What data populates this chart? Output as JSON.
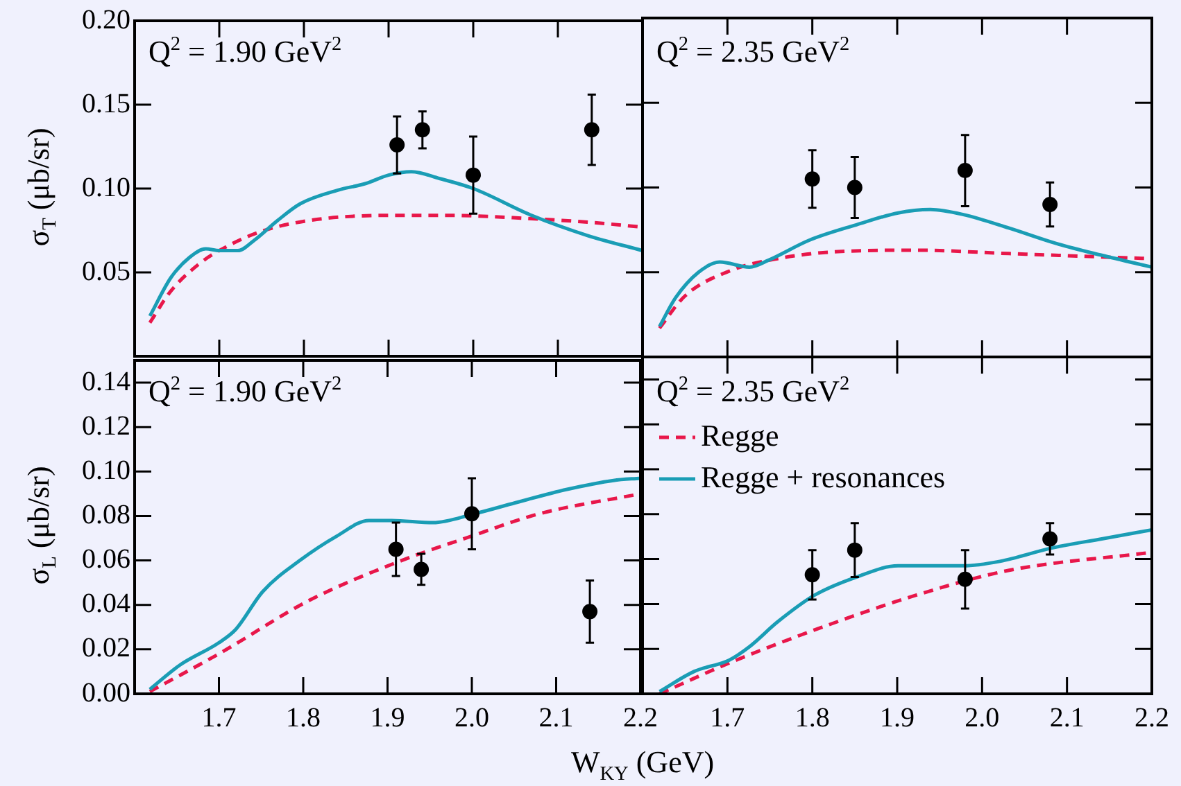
{
  "chart_data": [
    {
      "type": "line",
      "annotations": [
        "Q$^{2}$ = 1.90 GeV$^{2}$"
      ],
      "ylabel": "σ$_{T}$ (μb/sr)",
      "xlim": [
        1.6,
        2.2
      ],
      "xticks": [
        {
          "value": 1.7,
          "label": null
        },
        {
          "value": 1.8,
          "label": null
        },
        {
          "value": 1.9,
          "label": null
        },
        {
          "value": 2,
          "label": null
        },
        {
          "value": 2.1,
          "label": null
        },
        {
          "value": 2.2,
          "label": null
        }
      ],
      "ylim": [
        0,
        0.2
      ],
      "yticks": [
        0.05,
        {
          "value": 0.1,
          "label": "0.10"
        },
        0.15,
        {
          "value": 0.2,
          "label": "0.20"
        }
      ],
      "tick_labels": "y",
      "series": [
        {
          "type": "line",
          "color": "#1a9db5",
          "line_style": "solid",
          "marker": "none",
          "x": [
            1.618,
            1.643,
            1.665,
            1.684,
            1.7,
            1.722,
            1.741,
            1.769,
            1.796,
            1.84,
            1.873,
            1.9,
            1.927,
            1.96,
            2.0,
            2.069,
            2.135,
            2.2
          ],
          "values": [
            0.024,
            0.047,
            0.059,
            0.064,
            0.063,
            0.063,
            0.069,
            0.081,
            0.091,
            0.099,
            0.103,
            0.108,
            0.11,
            0.106,
            0.1,
            0.084,
            0.072,
            0.063
          ]
        },
        {
          "type": "line",
          "color": "#e8174a",
          "line_style": "dashed",
          "marker": "none",
          "x": [
            1.618,
            1.643,
            1.676,
            1.7,
            1.747,
            1.807,
            1.9,
            1.971,
            2.069,
            2.135,
            2.2
          ],
          "values": [
            0.02,
            0.039,
            0.055,
            0.063,
            0.074,
            0.081,
            0.084,
            0.084,
            0.082,
            0.08,
            0.077
          ]
        },
        {
          "type": "scatter",
          "color": "#000000",
          "marker": "circle",
          "x": [
            1.91,
            1.94,
            2.0,
            2.14
          ],
          "values": [
            0.126,
            0.135,
            0.108,
            0.135
          ],
          "errors": [
            0.017,
            0.011,
            0.023,
            0.021
          ]
        }
      ]
    },
    {
      "type": "line",
      "annotations": [
        "Q$^{2}$ = 2.35 GeV$^{2}$"
      ],
      "xlim": [
        1.6,
        2.2
      ],
      "xticks": [
        {
          "value": 1.7,
          "label": null
        },
        {
          "value": 1.8,
          "label": null
        },
        {
          "value": 1.9,
          "label": null
        },
        {
          "value": 2,
          "label": null
        },
        {
          "value": 2.1,
          "label": null
        },
        {
          "value": 2.2,
          "label": null
        }
      ],
      "ylim": [
        0,
        0.2
      ],
      "yticks": [
        {
          "value": 0.05,
          "label": null
        },
        {
          "value": 0.1,
          "label": null
        },
        {
          "value": 0.15,
          "label": null
        },
        {
          "value": 0.2,
          "label": null
        }
      ],
      "tick_labels": false,
      "series": [
        {
          "type": "line",
          "color": "#1a9db5",
          "line_style": "solid",
          "marker": "none",
          "x": [
            1.62,
            1.639,
            1.666,
            1.691,
            1.726,
            1.748,
            1.797,
            1.852,
            1.901,
            1.939,
            1.978,
            2.032,
            2.087,
            2.141,
            2.2
          ],
          "values": [
            0.018,
            0.035,
            0.05,
            0.056,
            0.053,
            0.057,
            0.069,
            0.078,
            0.085,
            0.087,
            0.084,
            0.076,
            0.067,
            0.06,
            0.053
          ]
        },
        {
          "type": "line",
          "color": "#e8174a",
          "line_style": "dashed",
          "marker": "none",
          "x": [
            1.62,
            1.65,
            1.704,
            1.759,
            1.825,
            1.923,
            2.032,
            2.141,
            2.2
          ],
          "values": [
            0.017,
            0.036,
            0.051,
            0.058,
            0.062,
            0.063,
            0.061,
            0.059,
            0.058
          ]
        },
        {
          "type": "scatter",
          "color": "#000000",
          "marker": "circle",
          "x": [
            1.8,
            1.85,
            1.98,
            2.08
          ],
          "values": [
            0.105,
            0.1,
            0.11,
            0.09
          ],
          "errors": [
            0.017,
            0.018,
            0.021,
            0.013
          ]
        }
      ]
    },
    {
      "type": "line",
      "annotations": [
        "Q$^{2}$ = 1.90 GeV$^{2}$"
      ],
      "ylabel": "σ$_{L}$ (μb/sr)",
      "xlabel": "W$_{KY}$ (GeV)",
      "xlim": [
        1.6,
        2.2
      ],
      "xticks": [
        1.7,
        1.8,
        1.9,
        {
          "value": 2,
          "label": "2.0"
        },
        2.1,
        2.2
      ],
      "ylim": [
        0,
        0.15
      ],
      "yticks": [
        {
          "value": 0,
          "label": "0.00"
        },
        0.02,
        0.04,
        0.06,
        0.08,
        {
          "value": 0.1,
          "label": "0.10"
        },
        0.12,
        0.14
      ],
      "series": [
        {
          "type": "line",
          "color": "#1a9db5",
          "line_style": "solid",
          "marker": "none",
          "x": [
            1.618,
            1.654,
            1.7,
            1.72,
            1.752,
            1.796,
            1.84,
            1.878,
            1.905,
            1.954,
            2.003,
            2.052,
            2.113,
            2.168,
            2.2
          ],
          "values": [
            0.002,
            0.013,
            0.023,
            0.029,
            0.046,
            0.06,
            0.071,
            0.078,
            0.078,
            0.077,
            0.081,
            0.086,
            0.092,
            0.096,
            0.097
          ]
        },
        {
          "type": "line",
          "color": "#e8174a",
          "line_style": "dashed",
          "marker": "none",
          "x": [
            1.618,
            1.7,
            1.807,
            1.91,
            2.0,
            2.08,
            2.2
          ],
          "values": [
            0.001,
            0.018,
            0.042,
            0.059,
            0.071,
            0.081,
            0.09
          ]
        },
        {
          "type": "scatter",
          "color": "#000000",
          "marker": "circle",
          "x": [
            1.91,
            1.94,
            2.0,
            2.14
          ],
          "values": [
            0.065,
            0.056,
            0.081,
            0.037
          ],
          "errors": [
            0.012,
            0.007,
            0.016,
            0.014
          ]
        }
      ]
    },
    {
      "type": "line",
      "annotations": [
        "Q$^{2}$ = 2.35 GeV$^{2}$"
      ],
      "legend": "top left",
      "xlim": [
        1.6,
        2.2
      ],
      "xticks": [
        1.7,
        1.8,
        1.9,
        {
          "value": 2,
          "label": "2.0"
        },
        2.1,
        2.2
      ],
      "ylim": [
        0,
        0.15
      ],
      "yticks": [
        {
          "value": 0,
          "label": null
        },
        {
          "value": 0.02,
          "label": null
        },
        {
          "value": 0.04,
          "label": null
        },
        {
          "value": 0.06,
          "label": null
        },
        {
          "value": 0.08,
          "label": null
        },
        {
          "value": 0.1,
          "label": null
        },
        {
          "value": 0.12,
          "label": null
        },
        {
          "value": 0.14,
          "label": null
        }
      ],
      "tick_labels": "x",
      "series": [
        {
          "type": "line",
          "name": "Regge + resonances",
          "color": "#1a9db5",
          "line_style": "solid",
          "marker": "none",
          "x": [
            1.62,
            1.661,
            1.702,
            1.726,
            1.759,
            1.803,
            1.852,
            1.901,
            1.934,
            1.978,
            2.021,
            2.083,
            2.141,
            2.2
          ],
          "values": [
            0.001,
            0.01,
            0.015,
            0.021,
            0.032,
            0.044,
            0.052,
            0.057,
            0.057,
            0.057,
            0.059,
            0.065,
            0.069,
            0.073
          ]
        },
        {
          "type": "line",
          "name": "Regge",
          "color": "#e8174a",
          "line_style": "dashed",
          "marker": "none",
          "x": [
            1.62,
            1.704,
            1.814,
            1.923,
            2.032,
            2.2
          ],
          "values": [
            0.0,
            0.014,
            0.03,
            0.044,
            0.055,
            0.063
          ]
        },
        {
          "type": "scatter",
          "color": "#000000",
          "marker": "circle",
          "x": [
            1.8,
            1.85,
            1.98,
            2.08
          ],
          "values": [
            0.053,
            0.064,
            0.051,
            0.069
          ],
          "errors": [
            0.011,
            0.012,
            0.013,
            0.007
          ]
        }
      ]
    }
  ]
}
